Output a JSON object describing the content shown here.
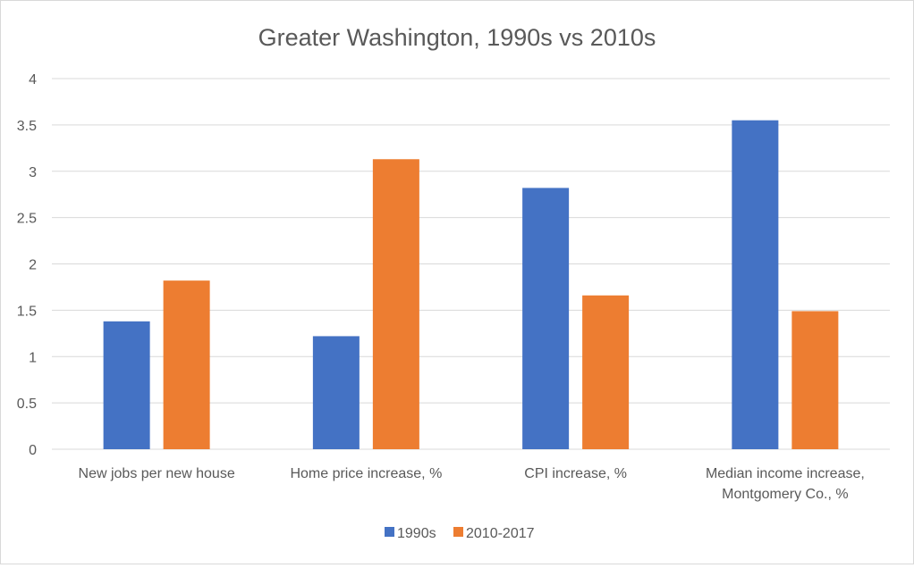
{
  "chart_data": {
    "type": "bar",
    "title": "Greater Washington, 1990s vs 2010s",
    "xlabel": "",
    "ylabel": "",
    "categories": [
      [
        "New jobs per new house"
      ],
      [
        "Home price increase, %"
      ],
      [
        "CPI increase, %"
      ],
      [
        "Median income increase,",
        "Montgomery Co., %"
      ]
    ],
    "series": [
      {
        "name": "1990s",
        "color": "#4472C4",
        "values": [
          1.38,
          1.22,
          2.82,
          3.55
        ]
      },
      {
        "name": "2010-2017",
        "color": "#ED7D31",
        "values": [
          1.82,
          3.13,
          1.66,
          1.49
        ]
      }
    ],
    "ylim": [
      0,
      4
    ],
    "yticks": [
      "0",
      "0.5",
      "1",
      "1.5",
      "2",
      "2.5",
      "3",
      "3.5",
      "4"
    ],
    "grid": true,
    "legend": "bottom"
  }
}
